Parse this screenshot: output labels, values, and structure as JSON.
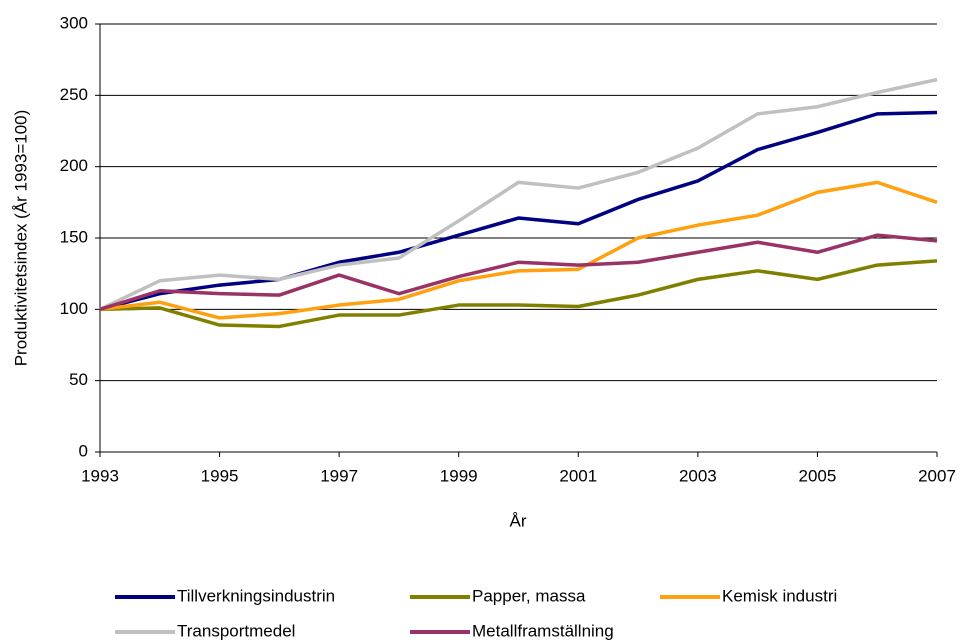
{
  "chart_data": {
    "type": "line",
    "y_label": "Produktivitetsindex (År 1993=100)",
    "x_label": "År",
    "x": [
      1993,
      1994,
      1995,
      1996,
      1997,
      1998,
      1999,
      2000,
      2001,
      2002,
      2003,
      2004,
      2005,
      2006,
      2007
    ],
    "xlim": [
      1993,
      2007
    ],
    "xticks": [
      1993,
      1995,
      1997,
      1999,
      2001,
      2003,
      2005,
      2007
    ],
    "ylim": [
      0,
      300
    ],
    "yticks": [
      0,
      50,
      100,
      150,
      200,
      250,
      300
    ],
    "grid": true,
    "series": [
      {
        "name": "Tillverkningsindustrin",
        "color": "#000080",
        "values": [
          100,
          111,
          117,
          121,
          133,
          140,
          152,
          164,
          160,
          177,
          190,
          212,
          224,
          237,
          238
        ]
      },
      {
        "name": "Papper, massa",
        "color": "#808000",
        "values": [
          100,
          101,
          89,
          88,
          96,
          96,
          103,
          103,
          102,
          110,
          121,
          127,
          121,
          131,
          134
        ]
      },
      {
        "name": "Kemisk industri",
        "color": "#ffa010",
        "values": [
          100,
          105,
          94,
          97,
          103,
          107,
          120,
          127,
          128,
          150,
          159,
          166,
          182,
          189,
          175
        ]
      },
      {
        "name": "Transportmedel",
        "color": "#c0c0c0",
        "values": [
          100,
          120,
          124,
          121,
          131,
          136,
          162,
          189,
          185,
          196,
          213,
          237,
          242,
          252,
          261
        ]
      },
      {
        "name": "Metallframställning",
        "color": "#993366",
        "values": [
          100,
          113,
          111,
          110,
          124,
          111,
          123,
          133,
          131,
          133,
          140,
          147,
          140,
          152,
          148
        ]
      }
    ]
  }
}
